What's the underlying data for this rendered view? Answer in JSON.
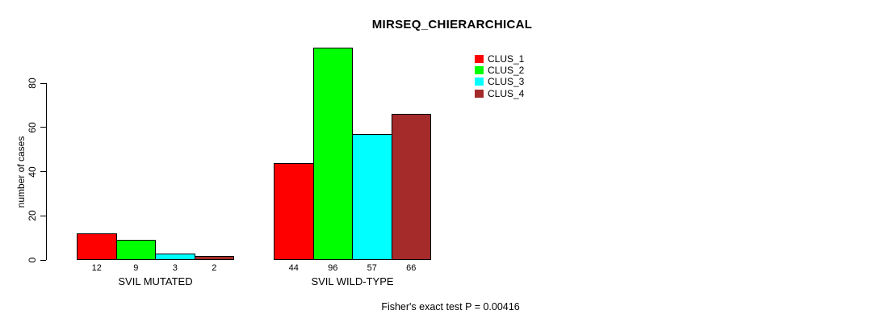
{
  "chart_data": {
    "type": "bar",
    "title": "MIRSEQ_CHIERARCHICAL",
    "ylabel": "number of cases",
    "xlabel": "",
    "ylim": [
      0,
      80
    ],
    "yticks": [
      0,
      20,
      40,
      60,
      80
    ],
    "grid": false,
    "legend_position": "top-right-inside",
    "legend_border": false,
    "background_color": "#ffffff",
    "axis_color": "#000000",
    "categories": [
      "SVIL MUTATED",
      "SVIL WILD-TYPE"
    ],
    "series": [
      {
        "name": "CLUS_1",
        "color": "#ff0000",
        "values": [
          12,
          44
        ]
      },
      {
        "name": "CLUS_2",
        "color": "#00ff00",
        "values": [
          9,
          96
        ]
      },
      {
        "name": "CLUS_3",
        "color": "#00ffff",
        "values": [
          3,
          57
        ]
      },
      {
        "name": "CLUS_4",
        "color": "#a52a2a",
        "values": [
          2,
          66
        ]
      }
    ],
    "show_bar_values": true,
    "annotation": "Fisher's exact test P = 0.00416"
  }
}
